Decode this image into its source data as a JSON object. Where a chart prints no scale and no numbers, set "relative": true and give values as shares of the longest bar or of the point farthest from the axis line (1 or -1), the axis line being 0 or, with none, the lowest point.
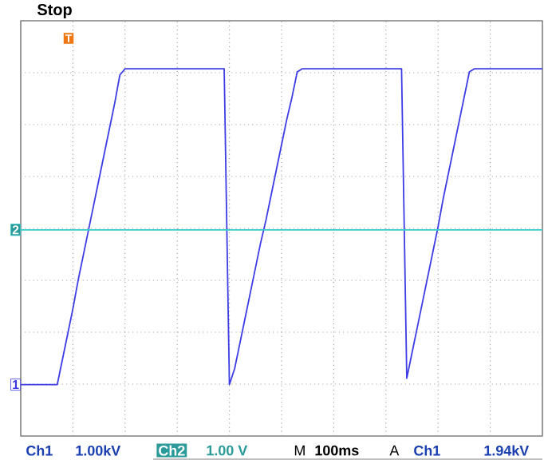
{
  "chart_data": {
    "type": "line",
    "relative": true,
    "grid": true,
    "legend": false,
    "marker": "none",
    "line_style": "solid",
    "categories": [
      null,
      null,
      null,
      null,
      null,
      null,
      null,
      null,
      null,
      null,
      null,
      null,
      null,
      null,
      null,
      null,
      null,
      null,
      null,
      null,
      null,
      null,
      null,
      null,
      null,
      null,
      null,
      null,
      null,
      null,
      null,
      null,
      null,
      null,
      null,
      null,
      null,
      null,
      null,
      null,
      null,
      null,
      null,
      null,
      null,
      null,
      null,
      null,
      null,
      null,
      null,
      null,
      null,
      null,
      null,
      null,
      null,
      null,
      null,
      null,
      null,
      null,
      null,
      null,
      null,
      null,
      null,
      null,
      null,
      null,
      null,
      null,
      null,
      null,
      null,
      null,
      null,
      null,
      null,
      null,
      null,
      null,
      null,
      null,
      null,
      null,
      null,
      null,
      null,
      null,
      null,
      null,
      null,
      null,
      null,
      null,
      null,
      null,
      null,
      null,
      null
    ],
    "series": [
      {
        "name": "1",
        "color": "#3c3ce6",
        "values": [
          0,
          0,
          0,
          0,
          0,
          0,
          0,
          0,
          0.08,
          0.16,
          0.24,
          0.33,
          0.41,
          0.49,
          0.57,
          0.65,
          0.73,
          0.81,
          0.89,
          0.98,
          1,
          1,
          1,
          1,
          1,
          1,
          1,
          1,
          1,
          1,
          1,
          1,
          1,
          1,
          1,
          1,
          1,
          1,
          1,
          1,
          0,
          0.05,
          0.13,
          0.21,
          0.29,
          0.37,
          0.45,
          0.52,
          0.6,
          0.68,
          0.76,
          0.84,
          0.91,
          0.99,
          1,
          1,
          1,
          1,
          1,
          1,
          1,
          1,
          1,
          1,
          1,
          1,
          1,
          1,
          1,
          1,
          1,
          1,
          1,
          1,
          0.02,
          0.1,
          0.18,
          0.26,
          0.34,
          0.42,
          0.5,
          0.59,
          0.67,
          0.75,
          0.83,
          0.91,
          0.99,
          1,
          1,
          1,
          1,
          1,
          1,
          1,
          1,
          1,
          1,
          1,
          1,
          1,
          1
        ]
      },
      {
        "name": "2",
        "color": "#33cccc",
        "values": [
          0.49,
          0.49,
          0.49,
          0.49,
          0.49,
          0.49,
          0.49,
          0.49,
          0.49,
          0.49,
          0.49,
          0.49,
          0.49,
          0.49,
          0.49,
          0.49,
          0.49,
          0.49,
          0.49,
          0.49,
          0.49,
          0.49,
          0.49,
          0.49,
          0.49,
          0.49,
          0.49,
          0.49,
          0.49,
          0.49,
          0.49,
          0.49,
          0.49,
          0.49,
          0.49,
          0.49,
          0.49,
          0.49,
          0.49,
          0.49,
          0.49,
          0.49,
          0.49,
          0.49,
          0.49,
          0.49,
          0.49,
          0.49,
          0.49,
          0.49,
          0.49,
          0.49,
          0.49,
          0.49,
          0.49,
          0.49,
          0.49,
          0.49,
          0.49,
          0.49,
          0.49,
          0.49,
          0.49,
          0.49,
          0.49,
          0.49,
          0.49,
          0.49,
          0.49,
          0.49,
          0.49,
          0.49,
          0.49,
          0.49,
          0.49,
          0.49,
          0.49,
          0.49,
          0.49,
          0.49,
          0.49,
          0.49,
          0.49,
          0.49,
          0.49,
          0.49,
          0.49,
          0.49,
          0.49,
          0.49,
          0.49,
          0.49,
          0.49,
          0.49,
          0.49,
          0.49,
          0.49,
          0.49,
          0.49,
          0.49,
          0.49
        ]
      }
    ],
    "annotations": [
      "Stop",
      "T",
      "Ch1",
      "1.00kV",
      "Ch2",
      "1.00 V",
      "M",
      "100ms",
      "A",
      "Ch1",
      "1.94kV"
    ]
  }
}
